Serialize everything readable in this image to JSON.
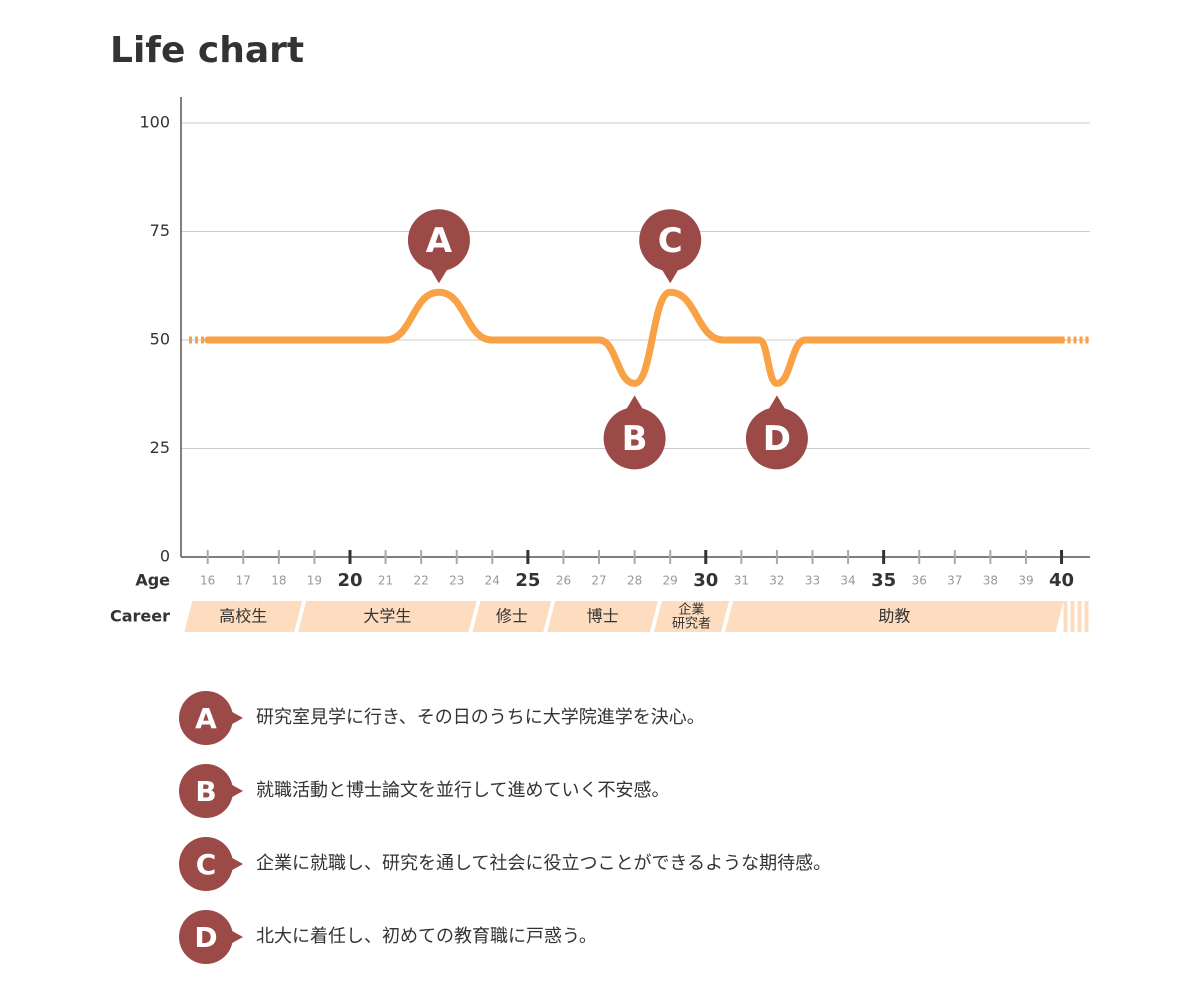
{
  "chart_data": {
    "type": "line",
    "title": "Life chart",
    "xlabel": "Age",
    "career_label": "Career",
    "x": [
      16,
      21,
      22.5,
      24,
      27,
      28,
      29,
      30.5,
      31.5,
      32,
      32.8,
      40
    ],
    "series": [
      {
        "color": "#f8a145",
        "values": [
          50,
          50,
          61,
          50,
          50,
          40,
          61,
          50,
          50,
          40,
          50,
          50
        ]
      }
    ],
    "xlim": [
      15.25,
      40.8
    ],
    "xticks": [
      16,
      17,
      18,
      19,
      20,
      21,
      22,
      23,
      24,
      25,
      26,
      27,
      28,
      29,
      30,
      31,
      32,
      33,
      34,
      35,
      36,
      37,
      38,
      39,
      40
    ],
    "ylim": [
      0,
      106
    ],
    "yticks": [
      0,
      25,
      50,
      75,
      100
    ],
    "grid": true,
    "marker_color": "#9c4a48",
    "career_color": "#fddcbf",
    "career": [
      {
        "lines": [
          "高校生"
        ],
        "from": 15.4,
        "to": 18.6
      },
      {
        "lines": [
          "大学生"
        ],
        "from": 18.6,
        "to": 23.5
      },
      {
        "lines": [
          "修士"
        ],
        "from": 23.5,
        "to": 25.6
      },
      {
        "lines": [
          "博士"
        ],
        "from": 25.6,
        "to": 28.6
      },
      {
        "lines": [
          "企業",
          "研究者"
        ],
        "from": 28.6,
        "to": 30.6
      },
      {
        "lines": [
          "助教"
        ],
        "from": 30.6,
        "to": 40
      }
    ],
    "annotations": [
      {
        "label": "A",
        "x": 22.5,
        "y": 61,
        "side": "above",
        "text": "研究室見学に行き、その日のうちに大学院進学を決心。"
      },
      {
        "label": "B",
        "x": 28,
        "y": 40,
        "side": "below",
        "text": "就職活動と博士論文を並行して進めていく不安感。"
      },
      {
        "label": "C",
        "x": 29,
        "y": 61,
        "side": "above",
        "text": "企業に就職し、研究を通して社会に役立つことができるような期待感。"
      },
      {
        "label": "D",
        "x": 32,
        "y": 40,
        "side": "below",
        "text": "北大に着任し、初めての教育職に戸惑う。"
      }
    ]
  }
}
